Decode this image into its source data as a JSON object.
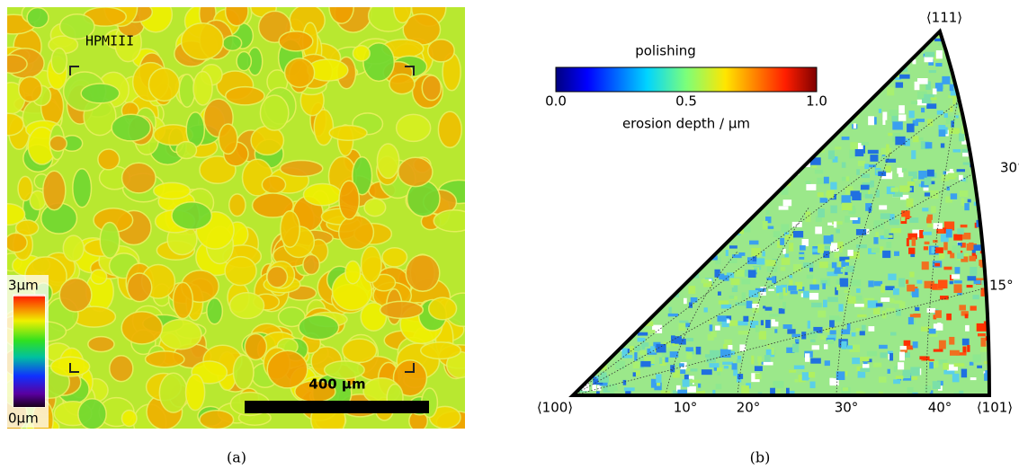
{
  "panel_a": {
    "engraving": "HPMIII",
    "colorbar_max": "3µm",
    "colorbar_min": "0µm",
    "scale_bar": "400 µm",
    "caption": "(a)"
  },
  "panel_b": {
    "title": "polishing",
    "colorbar_ticks": [
      "0.0",
      "0.5",
      "1.0"
    ],
    "colorbar_label": "erosion depth / µm",
    "corners": [
      "⟨111⟩",
      "⟨100⟩",
      "⟨101⟩"
    ],
    "right_angles": [
      "30°",
      "15°"
    ],
    "bottom_angles": [
      "10°",
      "20°",
      "30°",
      "40°"
    ],
    "caption": "(b)"
  }
}
